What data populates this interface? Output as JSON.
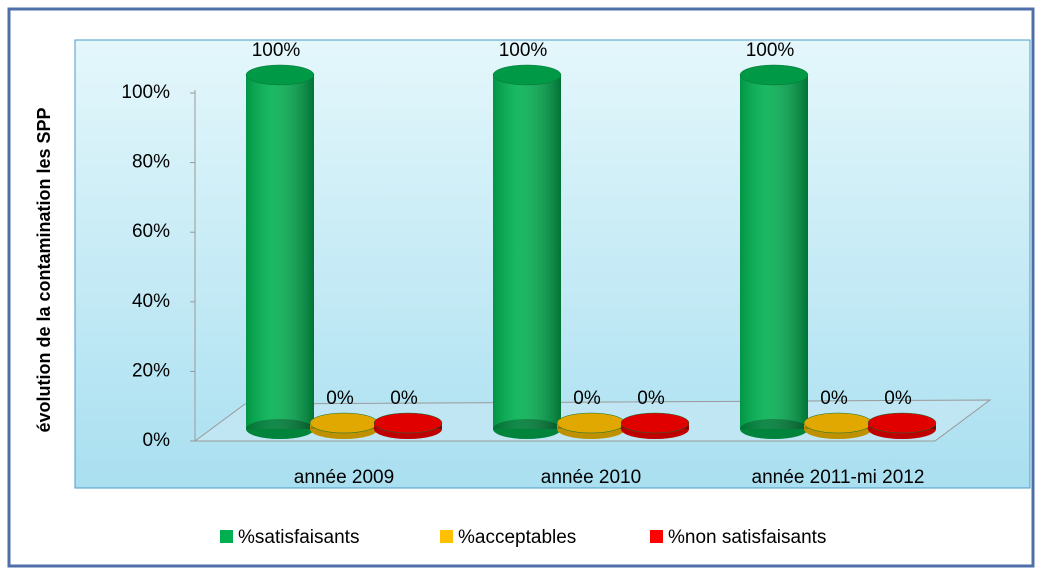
{
  "chart_data": {
    "type": "bar3d",
    "y_label": "évolution de la contamination les SPP",
    "categories": [
      "année 2009",
      "année 2010",
      "année 2011-mi 2012"
    ],
    "series": [
      {
        "name": "%satisfaisants",
        "color": "#00b050",
        "values": [
          100,
          100,
          100
        ],
        "value_labels": [
          "100%",
          "100%",
          "100%"
        ]
      },
      {
        "name": "%acceptables",
        "color": "#ffc000",
        "values": [
          0,
          0,
          0
        ],
        "value_labels": [
          "0%",
          "0%",
          "0%"
        ]
      },
      {
        "name": "%non satisfaisants",
        "color": "#ff0000",
        "values": [
          0,
          0,
          0
        ],
        "value_labels": [
          "0%",
          "0%",
          "0%"
        ]
      }
    ],
    "ylim": [
      0,
      100
    ],
    "yticks": [
      {
        "value": 0,
        "label": "0%"
      },
      {
        "value": 20,
        "label": "20%"
      },
      {
        "value": 40,
        "label": "40%"
      },
      {
        "value": 60,
        "label": "60%"
      },
      {
        "value": 80,
        "label": "80%"
      },
      {
        "value": 100,
        "label": "100%"
      }
    ],
    "legend": "bottom"
  }
}
